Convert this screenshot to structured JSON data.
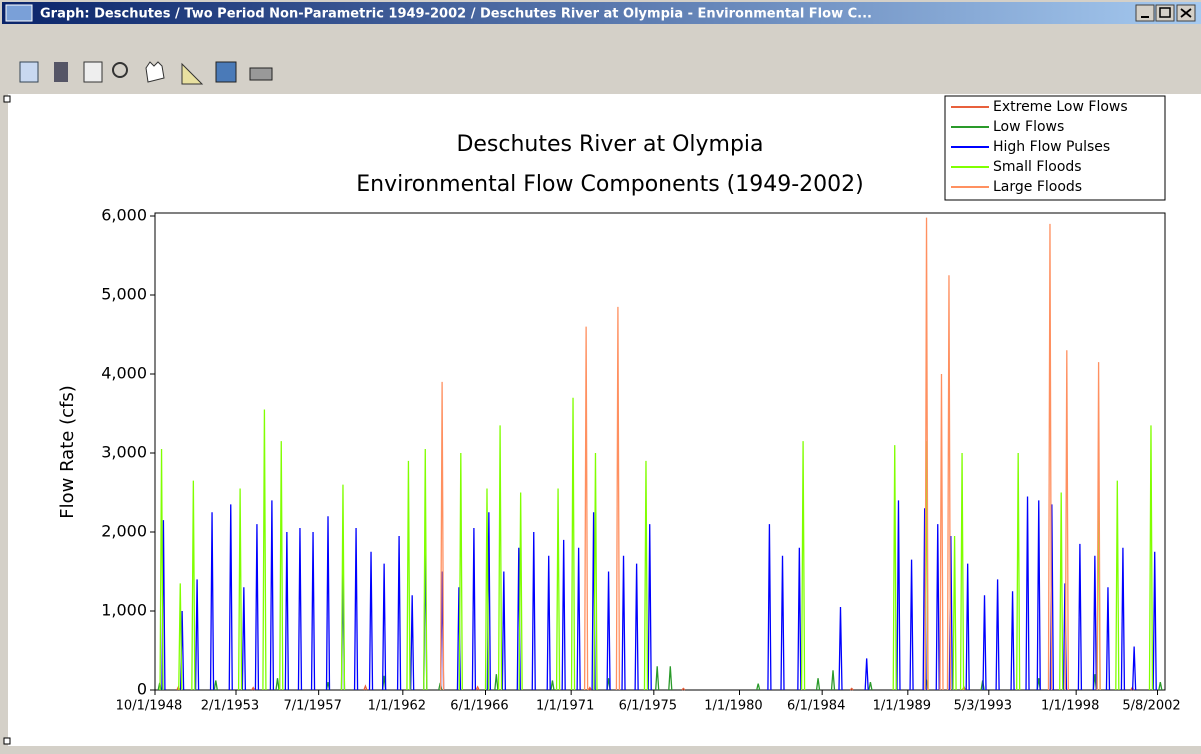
{
  "window": {
    "title": "Graph:  Deschutes / Two Period Non-Parametric 1949-2002 / Deschutes River at Olympia - Environmental Flow C..."
  },
  "chart_data": {
    "type": "spike",
    "title": "Deschutes River at Olympia",
    "subtitle": "Environmental Flow Components (1949-2002)",
    "ylabel": "Flow Rate (cfs)",
    "xlim": [
      1948.75,
      2002.75
    ],
    "xticks": [
      {
        "value": 1948.75,
        "label": "10/1/1948"
      },
      {
        "value": 1953.08,
        "label": "2/1/1953"
      },
      {
        "value": 1957.5,
        "label": "7/1/1957"
      },
      {
        "value": 1962.0,
        "label": "1/1/1962"
      },
      {
        "value": 1966.42,
        "label": "6/1/1966"
      },
      {
        "value": 1971.0,
        "label": "1/1/1971"
      },
      {
        "value": 1975.42,
        "label": "6/1/1975"
      },
      {
        "value": 1980.0,
        "label": "1/1/1980"
      },
      {
        "value": 1984.42,
        "label": "6/1/1984"
      },
      {
        "value": 1989.0,
        "label": "1/1/1989"
      },
      {
        "value": 1993.33,
        "label": "5/3/1993"
      },
      {
        "value": 1998.0,
        "label": "1/1/1998"
      },
      {
        "value": 2002.35,
        "label": "5/8/2002"
      }
    ],
    "ylim": [
      0,
      6000
    ],
    "yticks": [
      0,
      {
        "value": 1000,
        "label": "1,000"
      },
      {
        "value": 2000,
        "label": "2,000"
      },
      {
        "value": 3000,
        "label": "3,000"
      },
      {
        "value": 4000,
        "label": "4,000"
      },
      {
        "value": 5000,
        "label": "5,000"
      },
      {
        "value": 6000,
        "label": "6,000"
      }
    ],
    "legend": "upper right",
    "series": [
      {
        "name": "Extreme Low Flows",
        "color": "#e8603c",
        "x": [
          1950,
          1954,
          1960,
          1966,
          1972,
          1977,
          1986,
          1992,
          2001
        ],
        "values": [
          40,
          30,
          50,
          40,
          30,
          20,
          20,
          40,
          30
        ]
      },
      {
        "name": "Low Flows",
        "color": "#2a9a2a",
        "x": [
          1949.0,
          1952,
          1955.3,
          1958,
          1961,
          1964,
          1967,
          1970,
          1973,
          1975.6,
          1976.3,
          1981,
          1984.2,
          1985,
          1987,
          1990,
          1993,
          1996,
          1999,
          2002.5
        ],
        "values": [
          90,
          120,
          150,
          100,
          180,
          90,
          200,
          120,
          150,
          300,
          300,
          80,
          150,
          250,
          100,
          130,
          120,
          150,
          200,
          100
        ]
      },
      {
        "name": "High Flow Pulses",
        "color": "#0000ff",
        "x": [
          1949.2,
          1950.2,
          1951,
          1951.8,
          1952.8,
          1953.5,
          1954.2,
          1955,
          1955.8,
          1956.5,
          1957.2,
          1958,
          1958.8,
          1959.5,
          1960.3,
          1961,
          1961.8,
          1962.5,
          1963.2,
          1964.1,
          1965,
          1965.8,
          1966.6,
          1967.4,
          1968.2,
          1969,
          1969.8,
          1970.6,
          1971.4,
          1972.2,
          1973,
          1973.8,
          1974.5,
          1975.2,
          1981.6,
          1982.3,
          1983.2,
          1985.4,
          1986.8,
          1988.5,
          1989.2,
          1989.9,
          1990.6,
          1991.3,
          1992.2,
          1993.1,
          1993.8,
          1994.6,
          1995.4,
          1996,
          1996.7,
          1997.4,
          1998.2,
          1999,
          1999.7,
          2000.5,
          2001.1,
          2002.2
        ],
        "values": [
          2150,
          1000,
          1400,
          2250,
          2350,
          1300,
          2100,
          2400,
          2000,
          2050,
          2000,
          2200,
          1500,
          2050,
          1750,
          1600,
          1950,
          1200,
          1900,
          1500,
          1300,
          2050,
          2250,
          1500,
          1800,
          2000,
          1700,
          1900,
          1800,
          2250,
          1500,
          1700,
          1600,
          2100,
          2100,
          1700,
          1800,
          1050,
          400,
          2400,
          1650,
          2300,
          2100,
          1950,
          1600,
          1200,
          1400,
          1250,
          2450,
          2400,
          2350,
          1350,
          1850,
          1700,
          1300,
          1800,
          550,
          1750
        ]
      },
      {
        "name": "Small Floods",
        "color": "#80ff00",
        "x": [
          1949.1,
          1950.1,
          1950.8,
          1953.3,
          1954.6,
          1955.5,
          1958.8,
          1962.3,
          1963.2,
          1965.1,
          1966.5,
          1967.2,
          1968.3,
          1970.3,
          1971.1,
          1972.3,
          1975,
          1983.4,
          1988.3,
          1990,
          1991.5,
          1991.9,
          1994.9,
          1997.2,
          1999.2,
          2000.2,
          2002
        ],
        "values": [
          3050,
          1350,
          2650,
          2550,
          3550,
          3150,
          2600,
          2900,
          3050,
          3000,
          2550,
          3350,
          2500,
          2550,
          3700,
          3000,
          2900,
          3150,
          3100,
          3150,
          1950,
          3000,
          3000,
          2500,
          2650,
          2650,
          3350
        ]
      },
      {
        "name": "Large Floods",
        "color": "#ff9060",
        "x": [
          1964.1,
          1971.8,
          1973.5,
          1990,
          1990.8,
          1991.2,
          1996.6,
          1997.5,
          1999.2
        ],
        "values": [
          3900,
          4600,
          4850,
          5980,
          4000,
          5250,
          5900,
          4300,
          4150
        ]
      }
    ]
  }
}
